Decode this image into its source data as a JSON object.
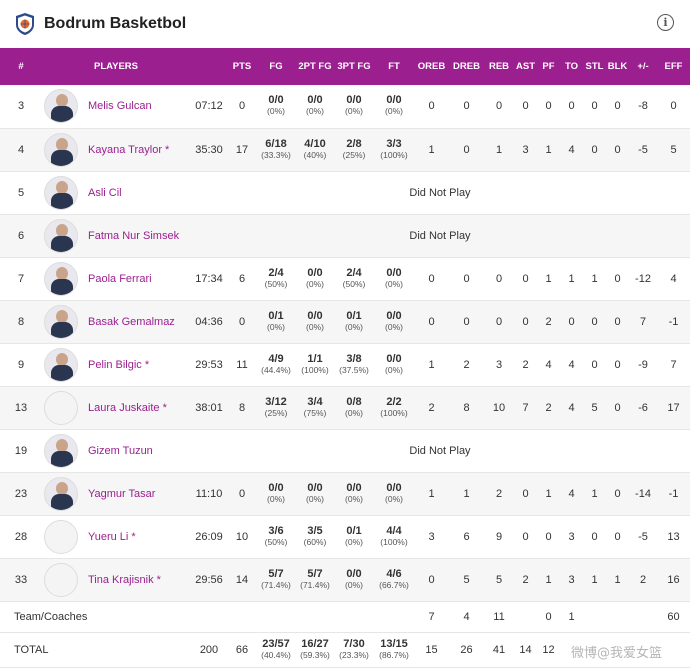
{
  "header": {
    "team_name": "Bodrum Basketbol",
    "info_icon": "info-icon"
  },
  "columns": [
    "#",
    "PLAYERS",
    "",
    "PTS",
    "FG",
    "2PT FG",
    "3PT FG",
    "FT",
    "OREB",
    "DREB",
    "REB",
    "AST",
    "PF",
    "TO",
    "STL",
    "BLK",
    "+/-",
    "EFF"
  ],
  "players": [
    {
      "num": "3",
      "name": "Melis Gulcan",
      "photo": true,
      "min": "07:12",
      "pts": "0",
      "fg": [
        "0/0",
        "(0%)"
      ],
      "fg2": [
        "0/0",
        "(0%)"
      ],
      "fg3": [
        "0/0",
        "(0%)"
      ],
      "ft": [
        "0/0",
        "(0%)"
      ],
      "oreb": "0",
      "dreb": "0",
      "reb": "0",
      "ast": "0",
      "pf": "0",
      "to": "0",
      "stl": "0",
      "blk": "0",
      "pm": "-8",
      "eff": "0"
    },
    {
      "num": "4",
      "name": "Kayana Traylor *",
      "photo": true,
      "min": "35:30",
      "pts": "17",
      "fg": [
        "6/18",
        "(33.3%)"
      ],
      "fg2": [
        "4/10",
        "(40%)"
      ],
      "fg3": [
        "2/8",
        "(25%)"
      ],
      "ft": [
        "3/3",
        "(100%)"
      ],
      "oreb": "1",
      "dreb": "0",
      "reb": "1",
      "ast": "3",
      "pf": "1",
      "to": "4",
      "stl": "0",
      "blk": "0",
      "pm": "-5",
      "eff": "5"
    },
    {
      "num": "5",
      "name": "Asli Cil",
      "photo": true,
      "dnp": "Did Not Play"
    },
    {
      "num": "6",
      "name": "Fatma Nur Simsek",
      "photo": true,
      "dnp": "Did Not Play"
    },
    {
      "num": "7",
      "name": "Paola Ferrari",
      "photo": true,
      "min": "17:34",
      "pts": "6",
      "fg": [
        "2/4",
        "(50%)"
      ],
      "fg2": [
        "0/0",
        "(0%)"
      ],
      "fg3": [
        "2/4",
        "(50%)"
      ],
      "ft": [
        "0/0",
        "(0%)"
      ],
      "oreb": "0",
      "dreb": "0",
      "reb": "0",
      "ast": "0",
      "pf": "1",
      "to": "1",
      "stl": "1",
      "blk": "0",
      "pm": "-12",
      "eff": "4"
    },
    {
      "num": "8",
      "name": "Basak Gemalmaz",
      "photo": true,
      "min": "04:36",
      "pts": "0",
      "fg": [
        "0/1",
        "(0%)"
      ],
      "fg2": [
        "0/0",
        "(0%)"
      ],
      "fg3": [
        "0/1",
        "(0%)"
      ],
      "ft": [
        "0/0",
        "(0%)"
      ],
      "oreb": "0",
      "dreb": "0",
      "reb": "0",
      "ast": "0",
      "pf": "2",
      "to": "0",
      "stl": "0",
      "blk": "0",
      "pm": "7",
      "eff": "-1"
    },
    {
      "num": "9",
      "name": "Pelin Bilgic *",
      "photo": true,
      "min": "29:53",
      "pts": "11",
      "fg": [
        "4/9",
        "(44.4%)"
      ],
      "fg2": [
        "1/1",
        "(100%)"
      ],
      "fg3": [
        "3/8",
        "(37.5%)"
      ],
      "ft": [
        "0/0",
        "(0%)"
      ],
      "oreb": "1",
      "dreb": "2",
      "reb": "3",
      "ast": "2",
      "pf": "4",
      "to": "4",
      "stl": "0",
      "blk": "0",
      "pm": "-9",
      "eff": "7"
    },
    {
      "num": "13",
      "name": "Laura Juskaite *",
      "photo": false,
      "min": "38:01",
      "pts": "8",
      "fg": [
        "3/12",
        "(25%)"
      ],
      "fg2": [
        "3/4",
        "(75%)"
      ],
      "fg3": [
        "0/8",
        "(0%)"
      ],
      "ft": [
        "2/2",
        "(100%)"
      ],
      "oreb": "2",
      "dreb": "8",
      "reb": "10",
      "ast": "7",
      "pf": "2",
      "to": "4",
      "stl": "5",
      "blk": "0",
      "pm": "-6",
      "eff": "17"
    },
    {
      "num": "19",
      "name": "Gizem Tuzun",
      "photo": true,
      "dnp": "Did Not Play"
    },
    {
      "num": "23",
      "name": "Yagmur Tasar",
      "photo": true,
      "min": "11:10",
      "pts": "0",
      "fg": [
        "0/0",
        "(0%)"
      ],
      "fg2": [
        "0/0",
        "(0%)"
      ],
      "fg3": [
        "0/0",
        "(0%)"
      ],
      "ft": [
        "0/0",
        "(0%)"
      ],
      "oreb": "1",
      "dreb": "1",
      "reb": "2",
      "ast": "0",
      "pf": "1",
      "to": "4",
      "stl": "1",
      "blk": "0",
      "pm": "-14",
      "eff": "-1"
    },
    {
      "num": "28",
      "name": "Yueru Li *",
      "photo": false,
      "min": "26:09",
      "pts": "10",
      "fg": [
        "3/6",
        "(50%)"
      ],
      "fg2": [
        "3/5",
        "(60%)"
      ],
      "fg3": [
        "0/1",
        "(0%)"
      ],
      "ft": [
        "4/4",
        "(100%)"
      ],
      "oreb": "3",
      "dreb": "6",
      "reb": "9",
      "ast": "0",
      "pf": "0",
      "to": "3",
      "stl": "0",
      "blk": "0",
      "pm": "-5",
      "eff": "13"
    },
    {
      "num": "33",
      "name": "Tina Krajisnik *",
      "photo": false,
      "min": "29:56",
      "pts": "14",
      "fg": [
        "5/7",
        "(71.4%)"
      ],
      "fg2": [
        "5/7",
        "(71.4%)"
      ],
      "fg3": [
        "0/0",
        "(0%)"
      ],
      "ft": [
        "4/6",
        "(66.7%)"
      ],
      "oreb": "0",
      "dreb": "5",
      "reb": "5",
      "ast": "2",
      "pf": "1",
      "to": "3",
      "stl": "1",
      "blk": "1",
      "pm": "2",
      "eff": "16"
    }
  ],
  "team_row": {
    "label": "Team/Coaches",
    "oreb": "7",
    "dreb": "4",
    "reb": "11",
    "ast": "",
    "pf": "0",
    "to": "1",
    "stl": "",
    "blk": "",
    "pm": "",
    "eff": "60"
  },
  "total_row": {
    "label": "TOTAL",
    "min": "200",
    "pts": "66",
    "fg": [
      "23/57",
      "(40.4%)"
    ],
    "fg2": [
      "16/27",
      "(59.3%)"
    ],
    "fg3": [
      "7/30",
      "(23.3%)"
    ],
    "ft": [
      "13/15",
      "(86.7%)"
    ],
    "oreb": "15",
    "dreb": "26",
    "reb": "41",
    "ast": "14",
    "pf": "12",
    "to": "",
    "stl": "",
    "blk": "",
    "pm": "",
    "eff": ""
  },
  "watermark": "微博@我爱女篮"
}
